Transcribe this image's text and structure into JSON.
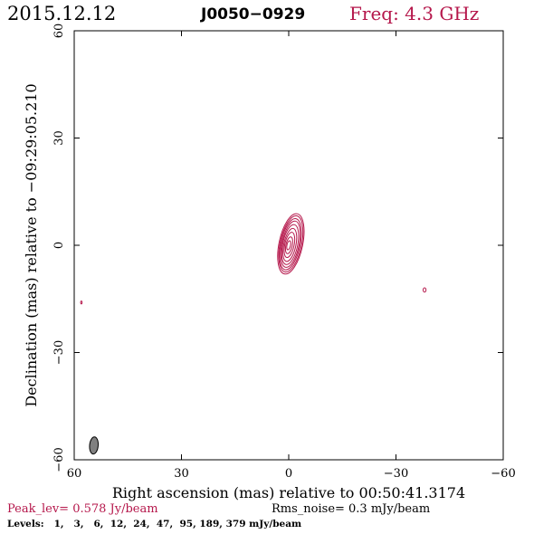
{
  "header": {
    "date": "2015.12.12",
    "source": "J0050−0929",
    "freq": "Freq: 4.3 GHz"
  },
  "footer": {
    "peak": "Peak_lev=  0.578 Jy/beam",
    "rms": "Rms_noise=  0.3 mJy/beam",
    "levels": "Levels:   1,   3,   6,  12,  24,  47,  95, 189, 379 mJy/beam"
  },
  "colors": {
    "contour": "#b5174b",
    "freq_text": "#b5174b",
    "peak_text": "#b5174b",
    "beam_fill": "#808080",
    "axis": "#000000"
  },
  "chart_data": {
    "type": "contour",
    "xlabel": "Right ascension (mas) relative to 00:50:41.3174",
    "ylabel": "Declination (mas) relative to −09:29:05.210",
    "xlim": [
      60,
      -60
    ],
    "ylim": [
      -60,
      60
    ],
    "xticks": [
      60,
      30,
      0,
      -30,
      -60
    ],
    "yticks": [
      -60,
      -30,
      0,
      30,
      60
    ],
    "xtick_labels": [
      "60",
      "30",
      "0",
      "−30",
      "−60"
    ],
    "ytick_labels": [
      "−60",
      "−30",
      "0",
      "30",
      "60"
    ],
    "peak_jy_per_beam": 0.578,
    "rms_mjy_per_beam": 0.3,
    "levels_mjy": [
      1,
      3,
      6,
      12,
      24,
      47,
      95,
      189,
      379
    ],
    "contours": [
      {
        "x": -0.6,
        "y": 0.4,
        "a": 3.3,
        "b": 8.6,
        "pa": 12
      },
      {
        "x": -0.6,
        "y": 0.4,
        "a": 3.0,
        "b": 8.0,
        "pa": 12
      },
      {
        "x": -0.5,
        "y": 0.3,
        "a": 2.7,
        "b": 7.3,
        "pa": 12
      },
      {
        "x": -0.5,
        "y": 0.3,
        "a": 2.4,
        "b": 6.6,
        "pa": 12
      },
      {
        "x": -0.4,
        "y": 0.2,
        "a": 2.1,
        "b": 5.7,
        "pa": 12
      },
      {
        "x": -0.3,
        "y": 0.1,
        "a": 1.7,
        "b": 4.7,
        "pa": 12
      },
      {
        "x": -0.2,
        "y": 0.1,
        "a": 1.3,
        "b": 3.6,
        "pa": 12
      },
      {
        "x": -0.1,
        "y": 0.0,
        "a": 0.9,
        "b": 2.4,
        "pa": 12
      },
      {
        "x": 0.0,
        "y": 0.0,
        "a": 0.5,
        "b": 1.3,
        "pa": 12
      }
    ],
    "secondary_features": [
      {
        "x": -38,
        "y": -12.5,
        "a": 0.4,
        "b": 0.6,
        "pa": 0
      },
      {
        "x": 58,
        "y": -16,
        "a": 0.2,
        "b": 0.4,
        "pa": 0
      }
    ],
    "beam": {
      "x": 54.5,
      "y": -56,
      "a": 1.2,
      "b": 2.4,
      "pa": 5
    }
  }
}
